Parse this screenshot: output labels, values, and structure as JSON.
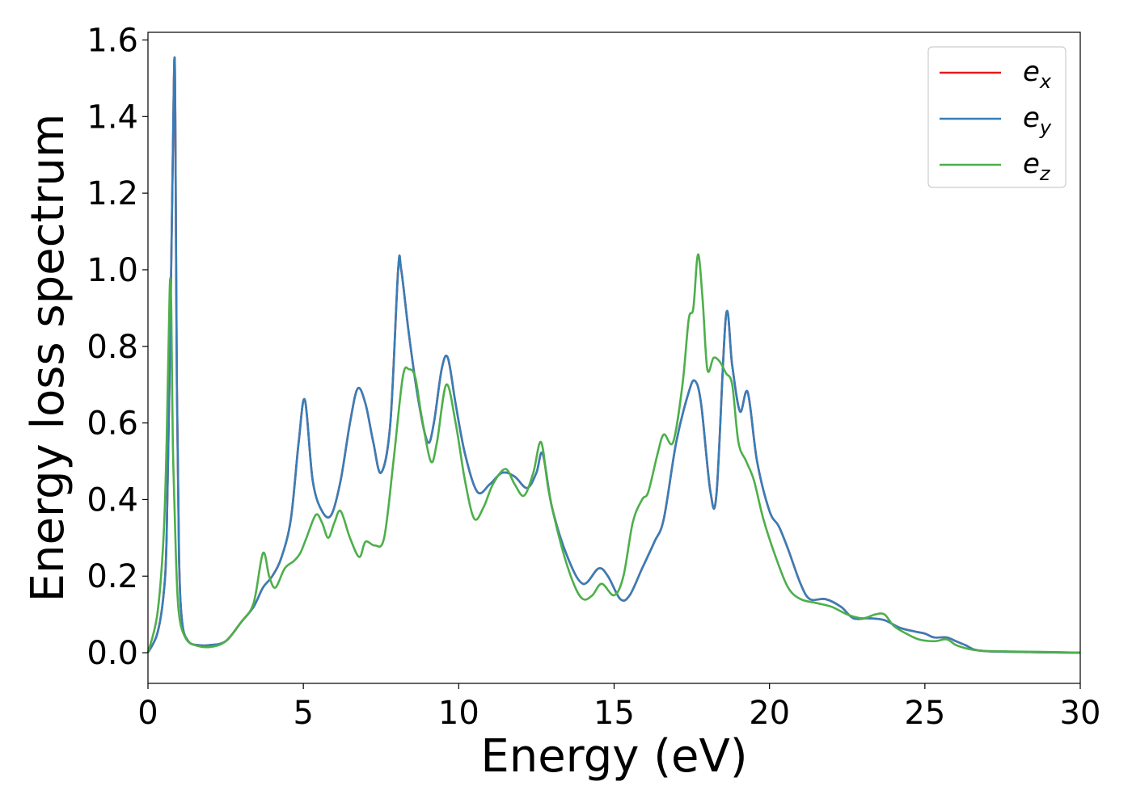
{
  "chart_data": {
    "type": "line",
    "title": "",
    "xlabel": "Energy (eV)",
    "ylabel": "Energy loss spectrum",
    "xlim": [
      0,
      30
    ],
    "ylim": [
      -0.08,
      1.62
    ],
    "xticks": [
      0,
      5,
      10,
      15,
      20,
      25,
      30
    ],
    "xtick_labels": [
      "0",
      "5",
      "10",
      "15",
      "20",
      "25",
      "30"
    ],
    "yticks": [
      0.0,
      0.2,
      0.4,
      0.6,
      0.8,
      1.0,
      1.2,
      1.4,
      1.6
    ],
    "ytick_labels": [
      "0.0",
      "0.2",
      "0.4",
      "0.6",
      "0.8",
      "1.0",
      "1.2",
      "1.4",
      "1.6"
    ],
    "grid": false,
    "legend_position": "top-right",
    "series": [
      {
        "name": "e_x",
        "legend_base": "e",
        "legend_sub": "x",
        "color": "#e41a1c",
        "x": [
          0,
          0.3,
          0.5,
          0.6,
          0.7,
          0.8,
          0.85,
          0.88,
          0.93,
          1.0,
          1.1,
          1.3,
          1.6,
          2.0,
          2.5,
          3.0,
          3.4,
          3.7,
          4.0,
          4.3,
          4.6,
          4.85,
          5.05,
          5.3,
          5.6,
          5.9,
          6.2,
          6.5,
          6.75,
          7.0,
          7.25,
          7.5,
          7.8,
          8.05,
          8.15,
          8.4,
          8.7,
          9.0,
          9.2,
          9.45,
          9.65,
          9.9,
          10.2,
          10.6,
          11.0,
          11.4,
          11.8,
          12.2,
          12.5,
          12.7,
          13.0,
          13.5,
          14.0,
          14.5,
          14.8,
          15.2,
          15.5,
          15.9,
          16.3,
          16.6,
          17.0,
          17.4,
          17.6,
          17.8,
          18.1,
          18.3,
          18.6,
          18.8,
          19.05,
          19.3,
          19.6,
          20.0,
          20.3,
          20.6,
          21.0,
          21.3,
          21.8,
          22.3,
          22.7,
          23.2,
          23.7,
          24.2,
          24.7,
          25.0,
          25.3,
          25.7,
          26.0,
          26.3,
          26.6,
          27.0,
          27.5,
          28.0,
          29.0,
          30.0
        ],
        "y": [
          0.0,
          0.05,
          0.15,
          0.3,
          0.75,
          1.3,
          1.55,
          1.4,
          0.7,
          0.25,
          0.08,
          0.03,
          0.02,
          0.02,
          0.03,
          0.08,
          0.12,
          0.17,
          0.2,
          0.25,
          0.35,
          0.55,
          0.66,
          0.45,
          0.37,
          0.36,
          0.45,
          0.6,
          0.69,
          0.65,
          0.55,
          0.47,
          0.6,
          1.0,
          1.0,
          0.83,
          0.66,
          0.55,
          0.6,
          0.74,
          0.77,
          0.65,
          0.52,
          0.42,
          0.44,
          0.47,
          0.46,
          0.43,
          0.47,
          0.52,
          0.38,
          0.25,
          0.18,
          0.22,
          0.2,
          0.14,
          0.15,
          0.22,
          0.29,
          0.35,
          0.55,
          0.68,
          0.71,
          0.65,
          0.42,
          0.42,
          0.88,
          0.75,
          0.63,
          0.68,
          0.5,
          0.37,
          0.33,
          0.27,
          0.18,
          0.14,
          0.14,
          0.12,
          0.09,
          0.09,
          0.085,
          0.065,
          0.055,
          0.05,
          0.04,
          0.04,
          0.03,
          0.02,
          0.008,
          0.004,
          0.003,
          0.002,
          0.001,
          0.0
        ]
      },
      {
        "name": "e_y",
        "legend_base": "e",
        "legend_sub": "y",
        "color": "#377eb8",
        "x": [
          0,
          0.3,
          0.5,
          0.6,
          0.7,
          0.8,
          0.85,
          0.88,
          0.93,
          1.0,
          1.1,
          1.3,
          1.6,
          2.0,
          2.5,
          3.0,
          3.4,
          3.7,
          4.0,
          4.3,
          4.6,
          4.85,
          5.05,
          5.3,
          5.6,
          5.9,
          6.2,
          6.5,
          6.75,
          7.0,
          7.25,
          7.5,
          7.8,
          8.05,
          8.15,
          8.4,
          8.7,
          9.0,
          9.2,
          9.45,
          9.65,
          9.9,
          10.2,
          10.6,
          11.0,
          11.4,
          11.8,
          12.2,
          12.5,
          12.7,
          13.0,
          13.5,
          14.0,
          14.5,
          14.8,
          15.2,
          15.5,
          15.9,
          16.3,
          16.6,
          17.0,
          17.4,
          17.6,
          17.8,
          18.1,
          18.3,
          18.6,
          18.8,
          19.05,
          19.3,
          19.6,
          20.0,
          20.3,
          20.6,
          21.0,
          21.3,
          21.8,
          22.3,
          22.7,
          23.2,
          23.7,
          24.2,
          24.7,
          25.0,
          25.3,
          25.7,
          26.0,
          26.3,
          26.6,
          27.0,
          27.5,
          28.0,
          29.0,
          30.0
        ],
        "y": [
          0.0,
          0.05,
          0.15,
          0.3,
          0.75,
          1.3,
          1.55,
          1.4,
          0.7,
          0.25,
          0.08,
          0.03,
          0.02,
          0.02,
          0.03,
          0.08,
          0.12,
          0.17,
          0.2,
          0.25,
          0.35,
          0.55,
          0.66,
          0.45,
          0.37,
          0.36,
          0.45,
          0.6,
          0.69,
          0.65,
          0.55,
          0.47,
          0.6,
          1.0,
          1.0,
          0.83,
          0.66,
          0.55,
          0.6,
          0.74,
          0.77,
          0.65,
          0.52,
          0.42,
          0.44,
          0.47,
          0.46,
          0.43,
          0.47,
          0.52,
          0.38,
          0.25,
          0.18,
          0.22,
          0.2,
          0.14,
          0.15,
          0.22,
          0.29,
          0.35,
          0.55,
          0.68,
          0.71,
          0.65,
          0.42,
          0.42,
          0.88,
          0.75,
          0.63,
          0.68,
          0.5,
          0.37,
          0.33,
          0.27,
          0.18,
          0.14,
          0.14,
          0.12,
          0.09,
          0.09,
          0.085,
          0.065,
          0.055,
          0.05,
          0.04,
          0.04,
          0.03,
          0.02,
          0.008,
          0.004,
          0.003,
          0.002,
          0.001,
          0.0
        ]
      },
      {
        "name": "e_z",
        "legend_base": "e",
        "legend_sub": "z",
        "color": "#4daf4a",
        "x": [
          0,
          0.3,
          0.5,
          0.6,
          0.7,
          0.75,
          0.8,
          0.9,
          1.0,
          1.2,
          1.5,
          2.0,
          2.5,
          3.0,
          3.4,
          3.7,
          3.9,
          4.1,
          4.4,
          4.7,
          4.9,
          5.1,
          5.4,
          5.6,
          5.8,
          6.0,
          6.2,
          6.5,
          6.8,
          7.0,
          7.3,
          7.6,
          7.9,
          8.2,
          8.4,
          8.6,
          8.8,
          9.1,
          9.3,
          9.6,
          9.9,
          10.2,
          10.5,
          10.8,
          11.1,
          11.5,
          11.8,
          12.1,
          12.4,
          12.65,
          12.9,
          13.3,
          13.7,
          14.0,
          14.3,
          14.6,
          15.0,
          15.3,
          15.6,
          15.9,
          16.1,
          16.4,
          16.6,
          16.9,
          17.2,
          17.4,
          17.55,
          17.7,
          17.85,
          18.0,
          18.2,
          18.4,
          18.6,
          18.8,
          19.0,
          19.25,
          19.5,
          19.8,
          20.2,
          20.6,
          21.0,
          21.5,
          22.0,
          22.5,
          23.0,
          23.4,
          23.7,
          24.0,
          24.4,
          24.8,
          25.3,
          25.7,
          26.0,
          26.4,
          26.8,
          27.3,
          28.0,
          29.0,
          30.0
        ],
        "y": [
          0.0,
          0.1,
          0.3,
          0.55,
          0.95,
          0.9,
          0.55,
          0.25,
          0.1,
          0.04,
          0.02,
          0.015,
          0.03,
          0.08,
          0.13,
          0.26,
          0.2,
          0.17,
          0.22,
          0.24,
          0.26,
          0.3,
          0.36,
          0.34,
          0.3,
          0.34,
          0.37,
          0.3,
          0.25,
          0.29,
          0.28,
          0.3,
          0.5,
          0.72,
          0.74,
          0.72,
          0.62,
          0.5,
          0.55,
          0.7,
          0.6,
          0.45,
          0.35,
          0.38,
          0.44,
          0.48,
          0.44,
          0.41,
          0.47,
          0.55,
          0.42,
          0.28,
          0.18,
          0.14,
          0.15,
          0.18,
          0.15,
          0.2,
          0.34,
          0.4,
          0.42,
          0.52,
          0.57,
          0.55,
          0.7,
          0.87,
          0.9,
          1.04,
          0.92,
          0.74,
          0.77,
          0.76,
          0.73,
          0.7,
          0.55,
          0.5,
          0.45,
          0.35,
          0.25,
          0.17,
          0.14,
          0.13,
          0.12,
          0.1,
          0.09,
          0.1,
          0.1,
          0.07,
          0.05,
          0.035,
          0.03,
          0.035,
          0.02,
          0.01,
          0.005,
          0.004,
          0.003,
          0.002,
          0.0
        ]
      }
    ]
  }
}
